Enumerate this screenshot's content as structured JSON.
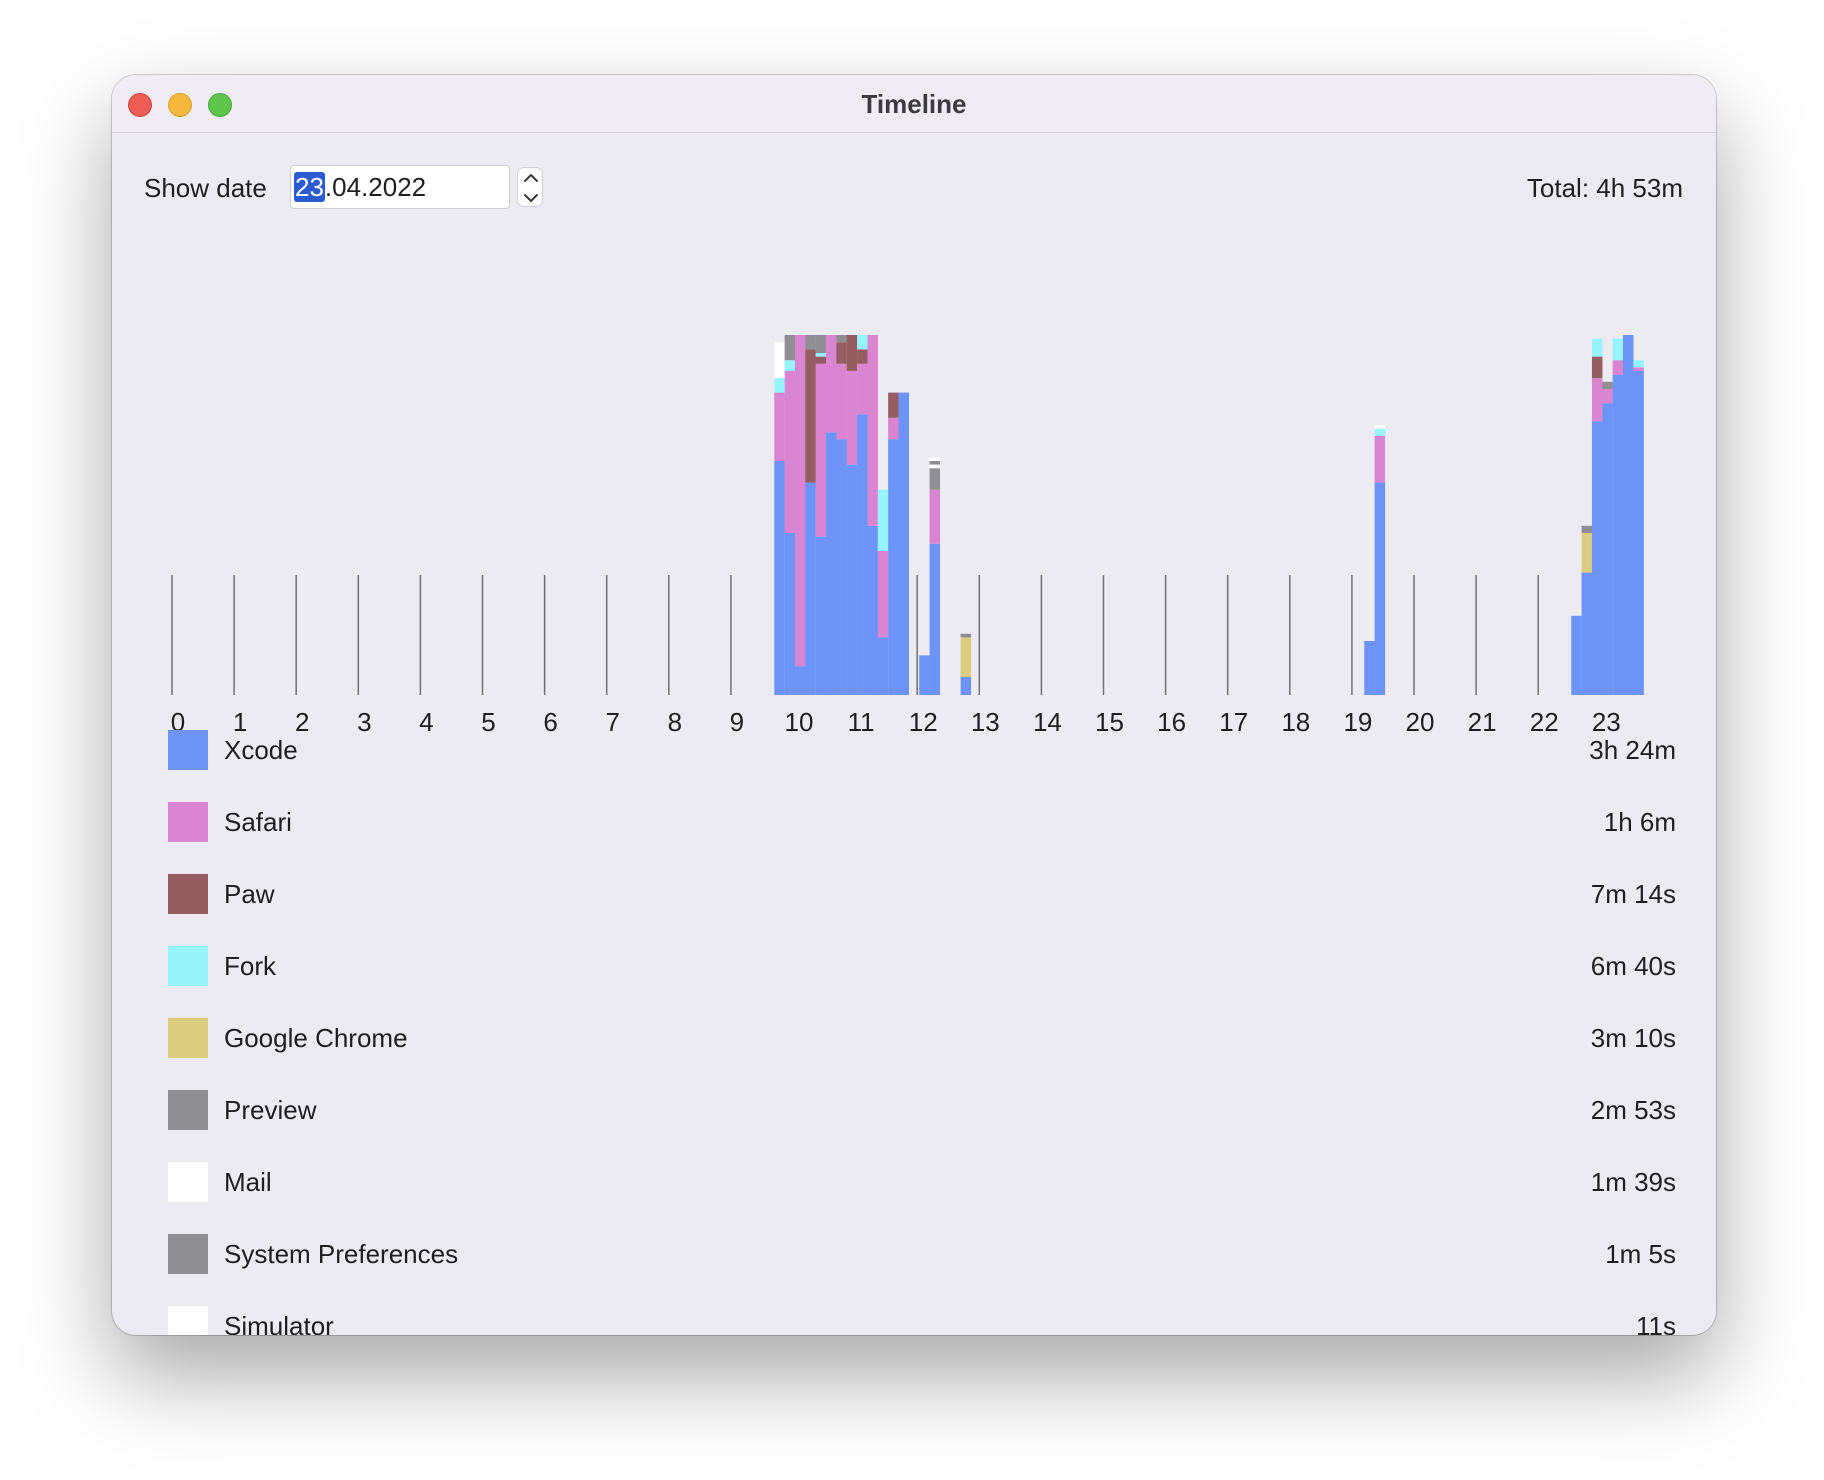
{
  "window": {
    "title": "Timeline"
  },
  "toolbar": {
    "show_date_label": "Show date",
    "date_day": "23",
    "date_rest": ".04.2022",
    "total": "Total: 4h 53m"
  },
  "colors": {
    "Xcode": "#6e93f7",
    "Safari": "#da85d1",
    "Paw": "#955d62",
    "Fork": "#96f5fb",
    "Google Chrome": "#dacd80",
    "Preview": "#8e8e93",
    "Mail": "#ffffff",
    "System Preferences": "#8e8e93",
    "Simulator": "#ffffff"
  },
  "chart_data": {
    "type": "bar",
    "stacked": true,
    "hour_labels": [
      "0",
      "1",
      "2",
      "3",
      "4",
      "5",
      "6",
      "7",
      "8",
      "9",
      "10",
      "11",
      "12",
      "13",
      "14",
      "15",
      "16",
      "17",
      "18",
      "19",
      "20",
      "21",
      "22",
      "23"
    ],
    "y_unit": "minutes per 10-minute slot",
    "ylim": [
      0,
      10
    ],
    "slots": [
      {
        "slot": 58,
        "segs": [
          [
            "Xcode",
            6.5
          ],
          [
            "Safari",
            1.9
          ],
          [
            "Fork",
            0.4
          ],
          [
            "Mail",
            1.0
          ]
        ]
      },
      {
        "slot": 59,
        "segs": [
          [
            "Xcode",
            4.5
          ],
          [
            "Safari",
            4.5
          ],
          [
            "Fork",
            0.3
          ],
          [
            "Preview",
            0.7
          ]
        ]
      },
      {
        "slot": 60,
        "segs": [
          [
            "Xcode",
            0.8
          ],
          [
            "Safari",
            9.2
          ]
        ]
      },
      {
        "slot": 61,
        "segs": [
          [
            "Xcode",
            5.9
          ],
          [
            "Paw",
            3.7
          ],
          [
            "Preview",
            0.4
          ]
        ]
      },
      {
        "slot": 62,
        "segs": [
          [
            "Xcode",
            4.4
          ],
          [
            "Safari",
            4.8
          ],
          [
            "Paw",
            0.2
          ],
          [
            "Fork",
            0.1
          ],
          [
            "Preview",
            0.5
          ]
        ]
      },
      {
        "slot": 63,
        "segs": [
          [
            "Xcode",
            7.3
          ],
          [
            "Safari",
            2.7
          ]
        ]
      },
      {
        "slot": 64,
        "segs": [
          [
            "Xcode",
            7.1
          ],
          [
            "Safari",
            2.1
          ],
          [
            "Paw",
            0.6
          ],
          [
            "Preview",
            0.2
          ]
        ]
      },
      {
        "slot": 65,
        "segs": [
          [
            "Xcode",
            6.4
          ],
          [
            "Safari",
            2.6
          ],
          [
            "Paw",
            1.0
          ]
        ]
      },
      {
        "slot": 66,
        "segs": [
          [
            "Xcode",
            7.8
          ],
          [
            "Safari",
            1.4
          ],
          [
            "Paw",
            0.4
          ],
          [
            "Fork",
            0.4
          ]
        ]
      },
      {
        "slot": 67,
        "segs": [
          [
            "Xcode",
            4.7
          ],
          [
            "Safari",
            5.3
          ]
        ]
      },
      {
        "slot": 68,
        "segs": [
          [
            "Xcode",
            1.6
          ],
          [
            "Safari",
            2.4
          ],
          [
            "Fork",
            1.7
          ]
        ]
      },
      {
        "slot": 69,
        "segs": [
          [
            "Xcode",
            7.1
          ],
          [
            "Safari",
            0.6
          ],
          [
            "Paw",
            0.7
          ]
        ]
      },
      {
        "slot": 70,
        "segs": [
          [
            "Xcode",
            8.4
          ]
        ]
      },
      {
        "slot": 72,
        "segs": [
          [
            "Xcode",
            1.1
          ]
        ]
      },
      {
        "slot": 73,
        "segs": [
          [
            "Xcode",
            4.2
          ],
          [
            "Safari",
            1.5
          ],
          [
            "Preview",
            0.6
          ],
          [
            "Mail",
            0.1
          ],
          [
            "Preview",
            0.1
          ],
          [
            "Mail",
            0.1
          ]
        ]
      },
      {
        "slot": 76,
        "segs": [
          [
            "Xcode",
            0.5
          ],
          [
            "Google Chrome",
            1.1
          ],
          [
            "Preview",
            0.1
          ]
        ]
      },
      {
        "slot": 115,
        "segs": [
          [
            "Xcode",
            1.5
          ]
        ]
      },
      {
        "slot": 116,
        "segs": [
          [
            "Xcode",
            5.9
          ],
          [
            "Safari",
            1.3
          ],
          [
            "Fork",
            0.2
          ],
          [
            "Mail",
            0.1
          ]
        ]
      },
      {
        "slot": 135,
        "segs": [
          [
            "Xcode",
            2.2
          ]
        ]
      },
      {
        "slot": 136,
        "segs": [
          [
            "Xcode",
            3.4
          ],
          [
            "Google Chrome",
            1.1
          ],
          [
            "Preview",
            0.2
          ]
        ]
      },
      {
        "slot": 137,
        "segs": [
          [
            "Xcode",
            7.6
          ],
          [
            "Safari",
            1.2
          ],
          [
            "Paw",
            0.6
          ],
          [
            "Fork",
            0.5
          ]
        ]
      },
      {
        "slot": 138,
        "segs": [
          [
            "Xcode",
            8.1
          ],
          [
            "Safari",
            0.4
          ],
          [
            "Preview",
            0.2
          ]
        ]
      },
      {
        "slot": 139,
        "segs": [
          [
            "Xcode",
            8.9
          ],
          [
            "Safari",
            0.4
          ],
          [
            "Fork",
            0.6
          ]
        ]
      },
      {
        "slot": 140,
        "segs": [
          [
            "Xcode",
            10.0
          ]
        ]
      },
      {
        "slot": 141,
        "segs": [
          [
            "Xcode",
            9.0
          ],
          [
            "Safari",
            0.1
          ],
          [
            "Fork",
            0.2
          ]
        ]
      }
    ]
  },
  "legend": [
    {
      "name": "Xcode",
      "time": "3h 24m",
      "color": "#6e93f7"
    },
    {
      "name": "Safari",
      "time": "1h 6m",
      "color": "#da85d1"
    },
    {
      "name": "Paw",
      "time": "7m 14s",
      "color": "#955d62"
    },
    {
      "name": "Fork",
      "time": "6m 40s",
      "color": "#96f5fb"
    },
    {
      "name": "Google Chrome",
      "time": "3m 10s",
      "color": "#dacd80"
    },
    {
      "name": "Preview",
      "time": "2m 53s",
      "color": "#8e8e93"
    },
    {
      "name": "Mail",
      "time": "1m 39s",
      "color": "#ffffff"
    },
    {
      "name": "System Preferences",
      "time": "1m 5s",
      "color": "#8e8e93"
    },
    {
      "name": "Simulator",
      "time": "11s",
      "color": "#ffffff"
    }
  ]
}
